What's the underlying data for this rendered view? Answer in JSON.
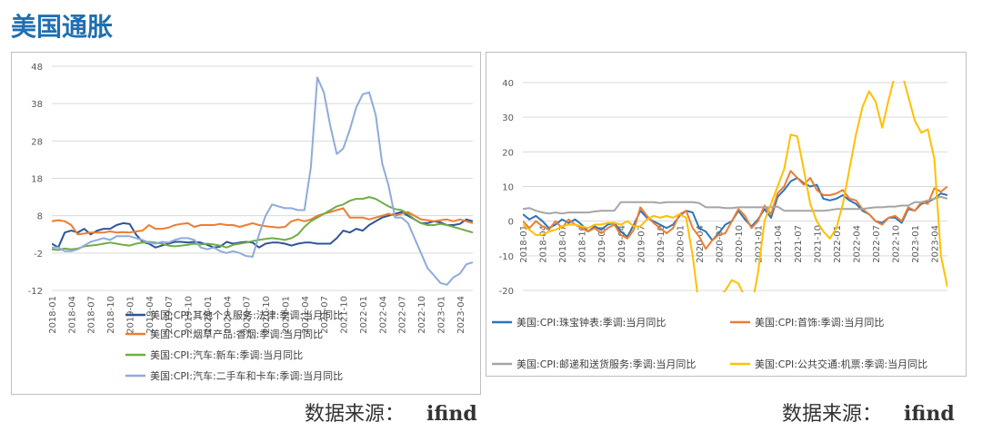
{
  "page": {
    "title": "美国通胀"
  },
  "sources": [
    {
      "label": "数据来源：",
      "value": "ifind"
    },
    {
      "label": "数据来源：",
      "value": "ifind"
    }
  ],
  "chart_data": [
    {
      "type": "line",
      "title": "",
      "xlabel": "",
      "ylabel": "",
      "ylim": [
        -12,
        48
      ],
      "yticks": [
        48,
        38,
        28,
        18,
        8,
        -2,
        -12
      ],
      "grid": "horizontal",
      "legend_position": "bottom",
      "x": [
        "2018-01",
        "2018-02",
        "2018-03",
        "2018-04",
        "2018-05",
        "2018-06",
        "2018-07",
        "2018-08",
        "2018-09",
        "2018-10",
        "2018-11",
        "2018-12",
        "2019-01",
        "2019-02",
        "2019-03",
        "2019-04",
        "2019-05",
        "2019-06",
        "2019-07",
        "2019-08",
        "2019-09",
        "2019-10",
        "2019-11",
        "2019-12",
        "2020-01",
        "2020-02",
        "2020-03",
        "2020-04",
        "2020-05",
        "2020-06",
        "2020-07",
        "2020-08",
        "2020-09",
        "2020-10",
        "2020-11",
        "2020-12",
        "2021-01",
        "2021-02",
        "2021-03",
        "2021-04",
        "2021-05",
        "2021-06",
        "2021-07",
        "2021-08",
        "2021-09",
        "2021-10",
        "2021-11",
        "2021-12",
        "2022-01",
        "2022-02",
        "2022-03",
        "2022-04",
        "2022-05",
        "2022-06",
        "2022-07",
        "2022-08",
        "2022-09",
        "2022-10",
        "2022-11",
        "2022-12",
        "2023-01",
        "2023-02",
        "2023-03",
        "2023-04",
        "2023-05",
        "2023-06"
      ],
      "xtick_labels": [
        "2018-01",
        "2018-04",
        "2018-07",
        "2018-10",
        "2019-01",
        "2019-04",
        "2019-07",
        "2019-10",
        "2020-01",
        "2020-04",
        "2020-07",
        "2020-10",
        "2021-01",
        "2021-04",
        "2021-07",
        "2021-10",
        "2022-01",
        "2022-04",
        "2022-07",
        "2022-10",
        "2023-01",
        "2023-04"
      ],
      "series": [
        {
          "name": "美国:CPI:其他个人服务:法律:季调:当月同比",
          "color": "#2f5597",
          "values": [
            0.5,
            -0.5,
            3.5,
            4.0,
            3.5,
            4.5,
            3.0,
            4.0,
            4.5,
            4.5,
            5.5,
            6.0,
            5.8,
            3.0,
            1.0,
            0.5,
            -0.5,
            0.0,
            0.5,
            1.0,
            1.0,
            0.8,
            1.0,
            0.8,
            0.2,
            -0.5,
            -0.3,
            1.0,
            0.5,
            0.8,
            1.0,
            0.8,
            -0.5,
            0.5,
            0.8,
            0.8,
            0.5,
            0.0,
            0.5,
            0.8,
            0.8,
            0.5,
            0.5,
            0.5,
            2.0,
            4.0,
            3.5,
            4.5,
            4.0,
            5.5,
            6.5,
            7.5,
            8.0,
            8.5,
            9.0,
            8.0,
            7.0,
            6.0,
            6.0,
            6.5,
            6.2,
            5.5,
            5.5,
            5.8,
            7.0,
            6.5
          ]
        },
        {
          "name": "美国:CPI:烟草产品:香烟:季调:当月同比",
          "color": "#ed7d31",
          "values": [
            6.5,
            6.8,
            6.5,
            5.5,
            3.0,
            3.2,
            3.5,
            3.5,
            3.5,
            3.8,
            3.5,
            3.6,
            3.5,
            3.8,
            4.0,
            5.5,
            4.5,
            4.5,
            4.8,
            5.5,
            5.8,
            6.0,
            5.0,
            5.5,
            5.5,
            5.5,
            5.8,
            5.5,
            5.5,
            5.0,
            5.5,
            6.0,
            5.5,
            5.2,
            5.0,
            4.8,
            5.0,
            6.5,
            7.0,
            6.5,
            7.0,
            8.0,
            8.5,
            9.0,
            9.5,
            10.0,
            7.5,
            7.5,
            7.5,
            7.0,
            7.5,
            8.0,
            8.5,
            8.0,
            8.5,
            9.0,
            8.0,
            7.0,
            6.8,
            6.5,
            6.8,
            7.0,
            6.5,
            7.0,
            6.5,
            6.0
          ]
        },
        {
          "name": "美国:CPI:汽车:新车:季调:当月同比",
          "color": "#70ad47",
          "values": [
            -1.0,
            -1.2,
            -0.8,
            -1.0,
            -0.8,
            -0.2,
            0.0,
            0.2,
            0.5,
            0.8,
            0.5,
            0.2,
            0.0,
            0.5,
            0.8,
            1.0,
            0.8,
            0.5,
            0.0,
            -0.2,
            0.0,
            0.2,
            0.5,
            0.3,
            0.5,
            0.3,
            0.0,
            -0.5,
            0.2,
            0.5,
            0.8,
            1.2,
            1.5,
            1.8,
            2.0,
            1.8,
            1.5,
            2.0,
            3.0,
            5.0,
            6.5,
            7.5,
            8.5,
            9.5,
            10.5,
            11.0,
            12.0,
            12.5,
            12.5,
            13.0,
            12.5,
            11.5,
            10.5,
            9.8,
            9.5,
            8.5,
            7.0,
            6.0,
            5.5,
            5.5,
            5.8,
            5.5,
            5.0,
            4.5,
            4.0,
            3.5
          ]
        },
        {
          "name": "美国:CPI:汽车:二手车和卡车:季调:当月同比",
          "color": "#8faadc",
          "values": [
            -0.5,
            -0.5,
            -1.5,
            -1.5,
            -1.0,
            0.0,
            1.0,
            1.5,
            2.0,
            1.5,
            2.5,
            2.5,
            2.5,
            2.0,
            1.5,
            0.8,
            0.5,
            1.0,
            0.8,
            1.5,
            2.0,
            2.0,
            1.5,
            -0.5,
            -1.0,
            -0.5,
            -1.5,
            -2.0,
            -1.5,
            -2.0,
            -2.8,
            -3.0,
            3.0,
            8.0,
            11.0,
            10.5,
            10.0,
            10.0,
            9.5,
            9.5,
            21.0,
            45.0,
            41.0,
            32.0,
            24.5,
            26.0,
            31.0,
            37.0,
            40.5,
            41.0,
            35.0,
            22.0,
            16.0,
            7.5,
            7.5,
            6.0,
            2.0,
            -2.0,
            -6.0,
            -8.0,
            -10.0,
            -10.5,
            -8.5,
            -7.5,
            -5.0,
            -4.5
          ]
        }
      ]
    },
    {
      "type": "line",
      "title": "",
      "xlabel": "",
      "ylabel": "",
      "ylim": [
        -20,
        40
      ],
      "yticks": [
        40,
        30,
        20,
        10,
        0,
        -10,
        -20
      ],
      "grid": "horizontal",
      "legend_position": "bottom",
      "x": [
        "2018-01",
        "2018-02",
        "2018-03",
        "2018-04",
        "2018-05",
        "2018-06",
        "2018-07",
        "2018-08",
        "2018-09",
        "2018-10",
        "2018-11",
        "2018-12",
        "2019-01",
        "2019-02",
        "2019-03",
        "2019-04",
        "2019-05",
        "2019-06",
        "2019-07",
        "2019-08",
        "2019-09",
        "2019-10",
        "2019-11",
        "2019-12",
        "2020-01",
        "2020-02",
        "2020-03",
        "2020-04",
        "2020-05",
        "2020-06",
        "2020-07",
        "2020-08",
        "2020-09",
        "2020-10",
        "2020-11",
        "2020-12",
        "2021-01",
        "2021-02",
        "2021-03",
        "2021-04",
        "2021-05",
        "2021-06",
        "2021-07",
        "2021-08",
        "2021-09",
        "2021-10",
        "2021-11",
        "2021-12",
        "2022-01",
        "2022-02",
        "2022-03",
        "2022-04",
        "2022-05",
        "2022-06",
        "2022-07",
        "2022-08",
        "2022-09",
        "2022-10",
        "2022-11",
        "2022-12",
        "2023-01",
        "2023-02",
        "2023-03",
        "2023-04",
        "2023-05",
        "2023-06"
      ],
      "xtick_labels": [
        "2018-01",
        "2018-04",
        "2018-07",
        "2018-10",
        "2019-01",
        "2019-04",
        "2019-07",
        "2019-10",
        "2020-01",
        "2020-04",
        "2020-07",
        "2020-10",
        "2021-01",
        "2021-04",
        "2021-07",
        "2021-10",
        "2022-01",
        "2022-04",
        "2022-07",
        "2022-10",
        "2023-01",
        "2023-04"
      ],
      "series": [
        {
          "name": "美国:CPI:珠宝钟表:季调:当月同比",
          "color": "#2e75b6",
          "values": [
            2.0,
            0.5,
            1.5,
            0.0,
            -2.0,
            -1.0,
            0.5,
            -0.5,
            0.5,
            -1.0,
            -3.0,
            -1.5,
            -2.5,
            -1.0,
            -0.5,
            -3.0,
            -4.5,
            -1.0,
            3.0,
            1.0,
            0.0,
            -1.0,
            -2.0,
            -1.0,
            1.5,
            3.0,
            2.5,
            -2.0,
            -3.0,
            -5.5,
            -3.5,
            -1.0,
            0.0,
            3.0,
            0.5,
            -1.5,
            0.5,
            3.5,
            1.0,
            7.0,
            9.0,
            11.5,
            12.5,
            11.0,
            10.0,
            10.5,
            6.5,
            6.0,
            6.5,
            7.5,
            6.0,
            5.0,
            3.0,
            2.0,
            0.0,
            -0.5,
            1.0,
            1.0,
            -0.5,
            3.5,
            3.0,
            5.0,
            5.5,
            6.5,
            8.0,
            7.5
          ]
        },
        {
          "name": "美国:CPI:首饰:季调:当月同比",
          "color": "#ed7d31",
          "values": [
            0.0,
            -2.0,
            0.0,
            -1.5,
            -2.5,
            0.0,
            -2.0,
            0.5,
            -1.0,
            -2.0,
            -3.0,
            -2.0,
            -3.5,
            -2.0,
            -1.0,
            -4.0,
            -5.0,
            -2.5,
            4.0,
            1.5,
            -0.5,
            -2.0,
            -3.5,
            -2.0,
            2.0,
            3.0,
            -2.0,
            -4.5,
            -8.0,
            -5.5,
            -4.0,
            -3.5,
            0.0,
            3.5,
            1.5,
            -2.0,
            0.0,
            4.5,
            2.0,
            8.0,
            10.0,
            14.5,
            12.5,
            10.5,
            12.5,
            9.0,
            7.5,
            7.5,
            8.0,
            9.0,
            6.5,
            6.0,
            3.5,
            2.0,
            0.0,
            -1.0,
            1.0,
            1.5,
            0.0,
            4.0,
            3.0,
            5.5,
            5.0,
            9.5,
            8.5,
            10.0
          ]
        },
        {
          "name": "美国:CPI:邮递和送货服务:季调:当月同比",
          "color": "#a5a5a5",
          "values": [
            3.5,
            3.8,
            3.0,
            2.5,
            2.2,
            2.5,
            2.2,
            2.5,
            2.5,
            2.5,
            2.5,
            2.8,
            3.0,
            3.0,
            3.0,
            5.5,
            5.5,
            5.5,
            5.5,
            5.5,
            5.5,
            5.2,
            5.5,
            5.5,
            5.5,
            5.5,
            5.5,
            5.2,
            4.0,
            4.0,
            4.0,
            3.8,
            3.8,
            4.0,
            4.0,
            4.0,
            4.0,
            4.0,
            4.0,
            4.2,
            3.0,
            3.0,
            3.0,
            3.0,
            3.0,
            3.0,
            3.0,
            3.2,
            3.5,
            3.5,
            3.5,
            3.5,
            3.5,
            3.8,
            4.0,
            4.0,
            4.2,
            4.2,
            4.5,
            4.5,
            5.5,
            5.5,
            6.0,
            6.5,
            7.0,
            6.5
          ]
        },
        {
          "name": "美国:CPI:公共交通:机票:季调:当月同比",
          "color": "#ffc000",
          "values": [
            -1.0,
            -2.5,
            -4.0,
            -4.0,
            -3.0,
            -2.5,
            -1.5,
            -1.0,
            -1.0,
            -1.5,
            -2.0,
            -1.0,
            -1.0,
            -0.5,
            -0.5,
            -1.0,
            0.0,
            -1.5,
            -1.5,
            0.5,
            1.5,
            1.0,
            1.5,
            1.0,
            2.0,
            1.0,
            -10.0,
            -25.0,
            -30.0,
            -27.0,
            -22.0,
            -20.0,
            -17.0,
            -18.0,
            -22.0,
            -25.0,
            -15.0,
            0.0,
            5.0,
            10.0,
            15.0,
            25.0,
            24.5,
            15.0,
            5.0,
            0.0,
            -3.0,
            -5.0,
            -2.0,
            5.0,
            15.0,
            25.0,
            33.0,
            37.5,
            34.5,
            27.0,
            35.0,
            42.5,
            43.0,
            36.0,
            29.0,
            25.5,
            26.5,
            18.0,
            -10.0,
            -19.0
          ]
        }
      ]
    }
  ]
}
